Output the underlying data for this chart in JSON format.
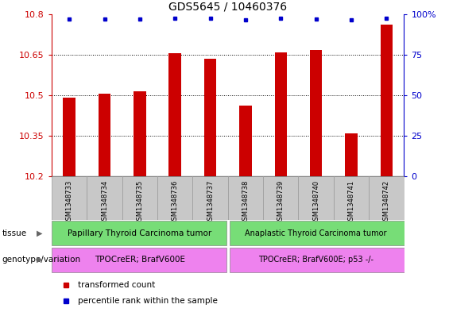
{
  "title": "GDS5645 / 10460376",
  "samples": [
    "GSM1348733",
    "GSM1348734",
    "GSM1348735",
    "GSM1348736",
    "GSM1348737",
    "GSM1348738",
    "GSM1348739",
    "GSM1348740",
    "GSM1348741",
    "GSM1348742"
  ],
  "transformed_counts": [
    10.49,
    10.505,
    10.515,
    10.655,
    10.635,
    10.462,
    10.657,
    10.668,
    10.36,
    10.762
  ],
  "percentile_ranks": [
    97,
    97,
    97,
    97.5,
    97.5,
    96.5,
    97.5,
    97,
    96.5,
    97.5
  ],
  "ylim_left": [
    10.2,
    10.8
  ],
  "ylim_right": [
    0,
    100
  ],
  "yticks_left": [
    10.2,
    10.35,
    10.5,
    10.65,
    10.8
  ],
  "yticks_right": [
    0,
    25,
    50,
    75,
    100
  ],
  "bar_color": "#cc0000",
  "dot_color": "#0000cc",
  "tissue_label1": "Papillary Thyroid Carcinoma tumor",
  "tissue_label2": "Anaplastic Thyroid Carcinoma tumor",
  "tissue_color": "#77dd77",
  "genotype_label1": "TPOCreER; BrafV600E",
  "genotype_label2": "TPOCreER; BrafV600E; p53 -/-",
  "genotype_color": "#ee82ee",
  "tissue_row_label": "tissue",
  "genotype_row_label": "genotype/variation",
  "legend_red_label": "transformed count",
  "legend_blue_label": "percentile rank within the sample",
  "sample_box_color": "#c8c8c8",
  "bar_width": 0.35,
  "title_fontsize": 10,
  "axis_fontsize": 8,
  "tick_fontsize": 8,
  "label_fontsize": 7.5,
  "sample_fontsize": 6,
  "legend_fontsize": 7.5
}
